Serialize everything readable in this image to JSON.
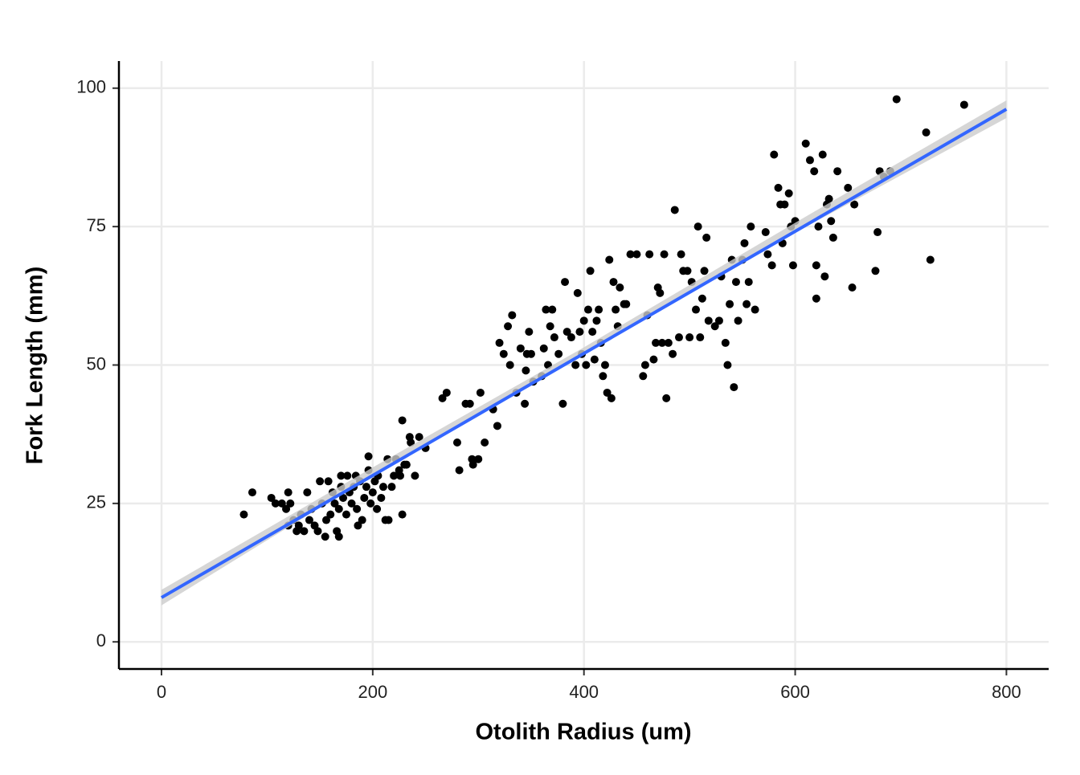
{
  "chart_data": {
    "type": "scatter",
    "x_label": "Otolith Radius (um)",
    "y_label": "Fork Length (mm)",
    "xlim": [
      -40.3,
      840
    ],
    "ylim": [
      -4.9,
      104.9
    ],
    "xticks": [
      0,
      200,
      400,
      600,
      800
    ],
    "yticks": [
      0,
      25,
      50,
      75,
      100
    ],
    "grid": true,
    "color": "#000000",
    "x": [
      78,
      86,
      104,
      108,
      114,
      118,
      120,
      120,
      122,
      125,
      128,
      130,
      132,
      135,
      138,
      140,
      142,
      145,
      148,
      150,
      152,
      155,
      156,
      158,
      160,
      162,
      164,
      166,
      168,
      168,
      170,
      170,
      172,
      175,
      176,
      178,
      180,
      182,
      184,
      185,
      186,
      188,
      190,
      192,
      194,
      196,
      196,
      198,
      200,
      202,
      204,
      205,
      208,
      210,
      212,
      214,
      215,
      218,
      220,
      222,
      225,
      226,
      228,
      228,
      230,
      232,
      235,
      236,
      240,
      244,
      250,
      266,
      270,
      280,
      282,
      288,
      292,
      294,
      295,
      300,
      302,
      306,
      314,
      318,
      320,
      324,
      328,
      330,
      332,
      336,
      340,
      344,
      345,
      346,
      348,
      350,
      352,
      360,
      362,
      364,
      366,
      368,
      370,
      372,
      376,
      380,
      382,
      384,
      388,
      392,
      394,
      396,
      398,
      400,
      402,
      404,
      406,
      408,
      410,
      412,
      414,
      416,
      418,
      420,
      422,
      424,
      426,
      428,
      430,
      432,
      434,
      438,
      440,
      444,
      450,
      456,
      458,
      460,
      462,
      466,
      468,
      470,
      472,
      474,
      476,
      478,
      480,
      484,
      486,
      490,
      492,
      494,
      498,
      500,
      502,
      506,
      508,
      510,
      512,
      514,
      516,
      518,
      524,
      528,
      530,
      534,
      536,
      538,
      540,
      542,
      544,
      546,
      550,
      552,
      554,
      556,
      558,
      562,
      572,
      574,
      578,
      580,
      584,
      586,
      588,
      590,
      594,
      596,
      598,
      600,
      610,
      614,
      618,
      620,
      620,
      622,
      626,
      628,
      630,
      632,
      634,
      636,
      640,
      650,
      654,
      656,
      676,
      678,
      680,
      684,
      690,
      696,
      724,
      728,
      760
    ],
    "y": [
      23,
      27,
      26,
      25,
      25,
      24,
      21,
      27,
      25,
      22,
      20,
      21,
      23,
      20,
      27,
      22,
      24,
      21,
      20,
      29,
      25,
      19,
      22,
      29,
      23,
      27,
      25,
      20,
      19,
      24,
      28,
      30,
      26,
      23,
      30,
      27,
      25,
      28,
      30,
      24,
      21,
      29,
      22,
      26,
      28,
      33.5,
      31,
      25,
      27,
      29,
      24,
      30,
      26,
      28,
      22,
      33,
      22,
      28,
      30,
      33,
      31,
      30,
      23,
      40,
      32,
      32,
      37,
      36,
      30,
      37,
      35,
      44,
      45,
      36,
      31,
      43,
      43,
      33,
      32,
      33,
      45,
      36,
      42,
      39,
      54,
      52,
      57,
      50,
      59,
      45,
      53,
      43,
      49,
      52,
      56,
      52,
      47,
      48,
      53,
      60,
      50,
      57,
      60,
      55,
      52,
      43,
      65,
      56,
      55,
      50,
      63,
      56,
      52,
      58,
      50,
      60,
      67,
      56,
      51,
      58,
      60,
      54,
      48,
      50,
      45,
      69,
      44,
      65,
      60,
      57,
      64,
      61,
      61,
      70,
      70,
      48,
      50,
      59,
      70,
      51,
      54,
      64,
      63,
      54,
      70,
      44,
      54,
      52,
      78,
      55,
      70,
      67,
      67,
      55,
      65,
      60,
      75,
      55,
      62,
      67,
      73,
      58,
      57,
      58,
      66,
      54,
      50,
      61,
      69,
      46,
      65,
      58,
      69,
      72,
      61,
      65,
      75,
      60,
      74,
      70,
      68,
      88,
      82,
      79,
      72,
      79,
      81,
      75,
      68,
      76,
      90,
      87,
      85,
      68,
      62,
      75,
      88,
      66,
      79,
      80,
      76,
      73,
      85,
      82,
      64,
      79,
      67,
      74,
      85,
      84,
      85,
      98,
      92,
      69,
      97
    ],
    "fit": {
      "color": "#3366ff",
      "x": [
        0,
        800
      ],
      "y": [
        8,
        96.2
      ]
    },
    "ribbon": {
      "color": "#cccccc",
      "x": [
        0,
        200,
        400,
        600,
        800
      ],
      "lower": [
        6.6,
        30.1,
        52.0,
        73.9,
        94.6
      ],
      "upper": [
        9.4,
        31.5,
        53.2,
        75.7,
        97.8
      ]
    }
  }
}
